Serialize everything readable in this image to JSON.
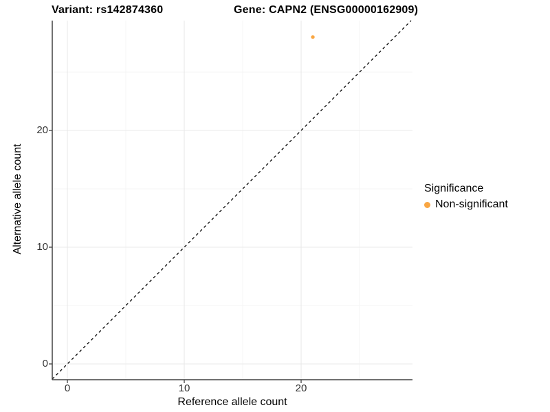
{
  "titles": {
    "variant": "Variant: rs142874360",
    "gene": "Gene: CAPN2 (ENSG00000162909)"
  },
  "chart_data": {
    "type": "scatter",
    "title": "Variant: rs142874360    Gene: CAPN2 (ENSG00000162909)",
    "title_parts": [
      "Variant: rs142874360",
      "Gene: CAPN2 (ENSG00000162909)"
    ],
    "xlabel": "Reference allele count",
    "ylabel": "Alternative allele count",
    "xlim": [
      -1.3,
      29.5
    ],
    "ylim": [
      -1.3,
      29.4
    ],
    "x_ticks": [
      0,
      10,
      20
    ],
    "y_ticks": [
      0,
      10,
      20
    ],
    "x_minor_ticks": [
      5,
      15,
      25
    ],
    "y_minor_ticks": [
      5,
      15,
      25
    ],
    "grid": "major+minor",
    "series": [
      {
        "name": "Non-significant",
        "color": "#F9A642",
        "points": [
          {
            "x": 21,
            "y": 28
          }
        ]
      }
    ],
    "reference_line": {
      "kind": "identity",
      "slope": 1,
      "intercept": 0,
      "style": "dashed",
      "color": "#000000"
    },
    "legend": {
      "title": "Significance",
      "position": "right",
      "entries": [
        {
          "label": "Non-significant",
          "color": "#F9A642"
        }
      ]
    },
    "colors": {
      "axis": "#404040",
      "grid_major": "#E9E9E9",
      "grid_minor": "#F4F4F4",
      "background": "#FFFFFF",
      "point": "#F9A642"
    }
  }
}
